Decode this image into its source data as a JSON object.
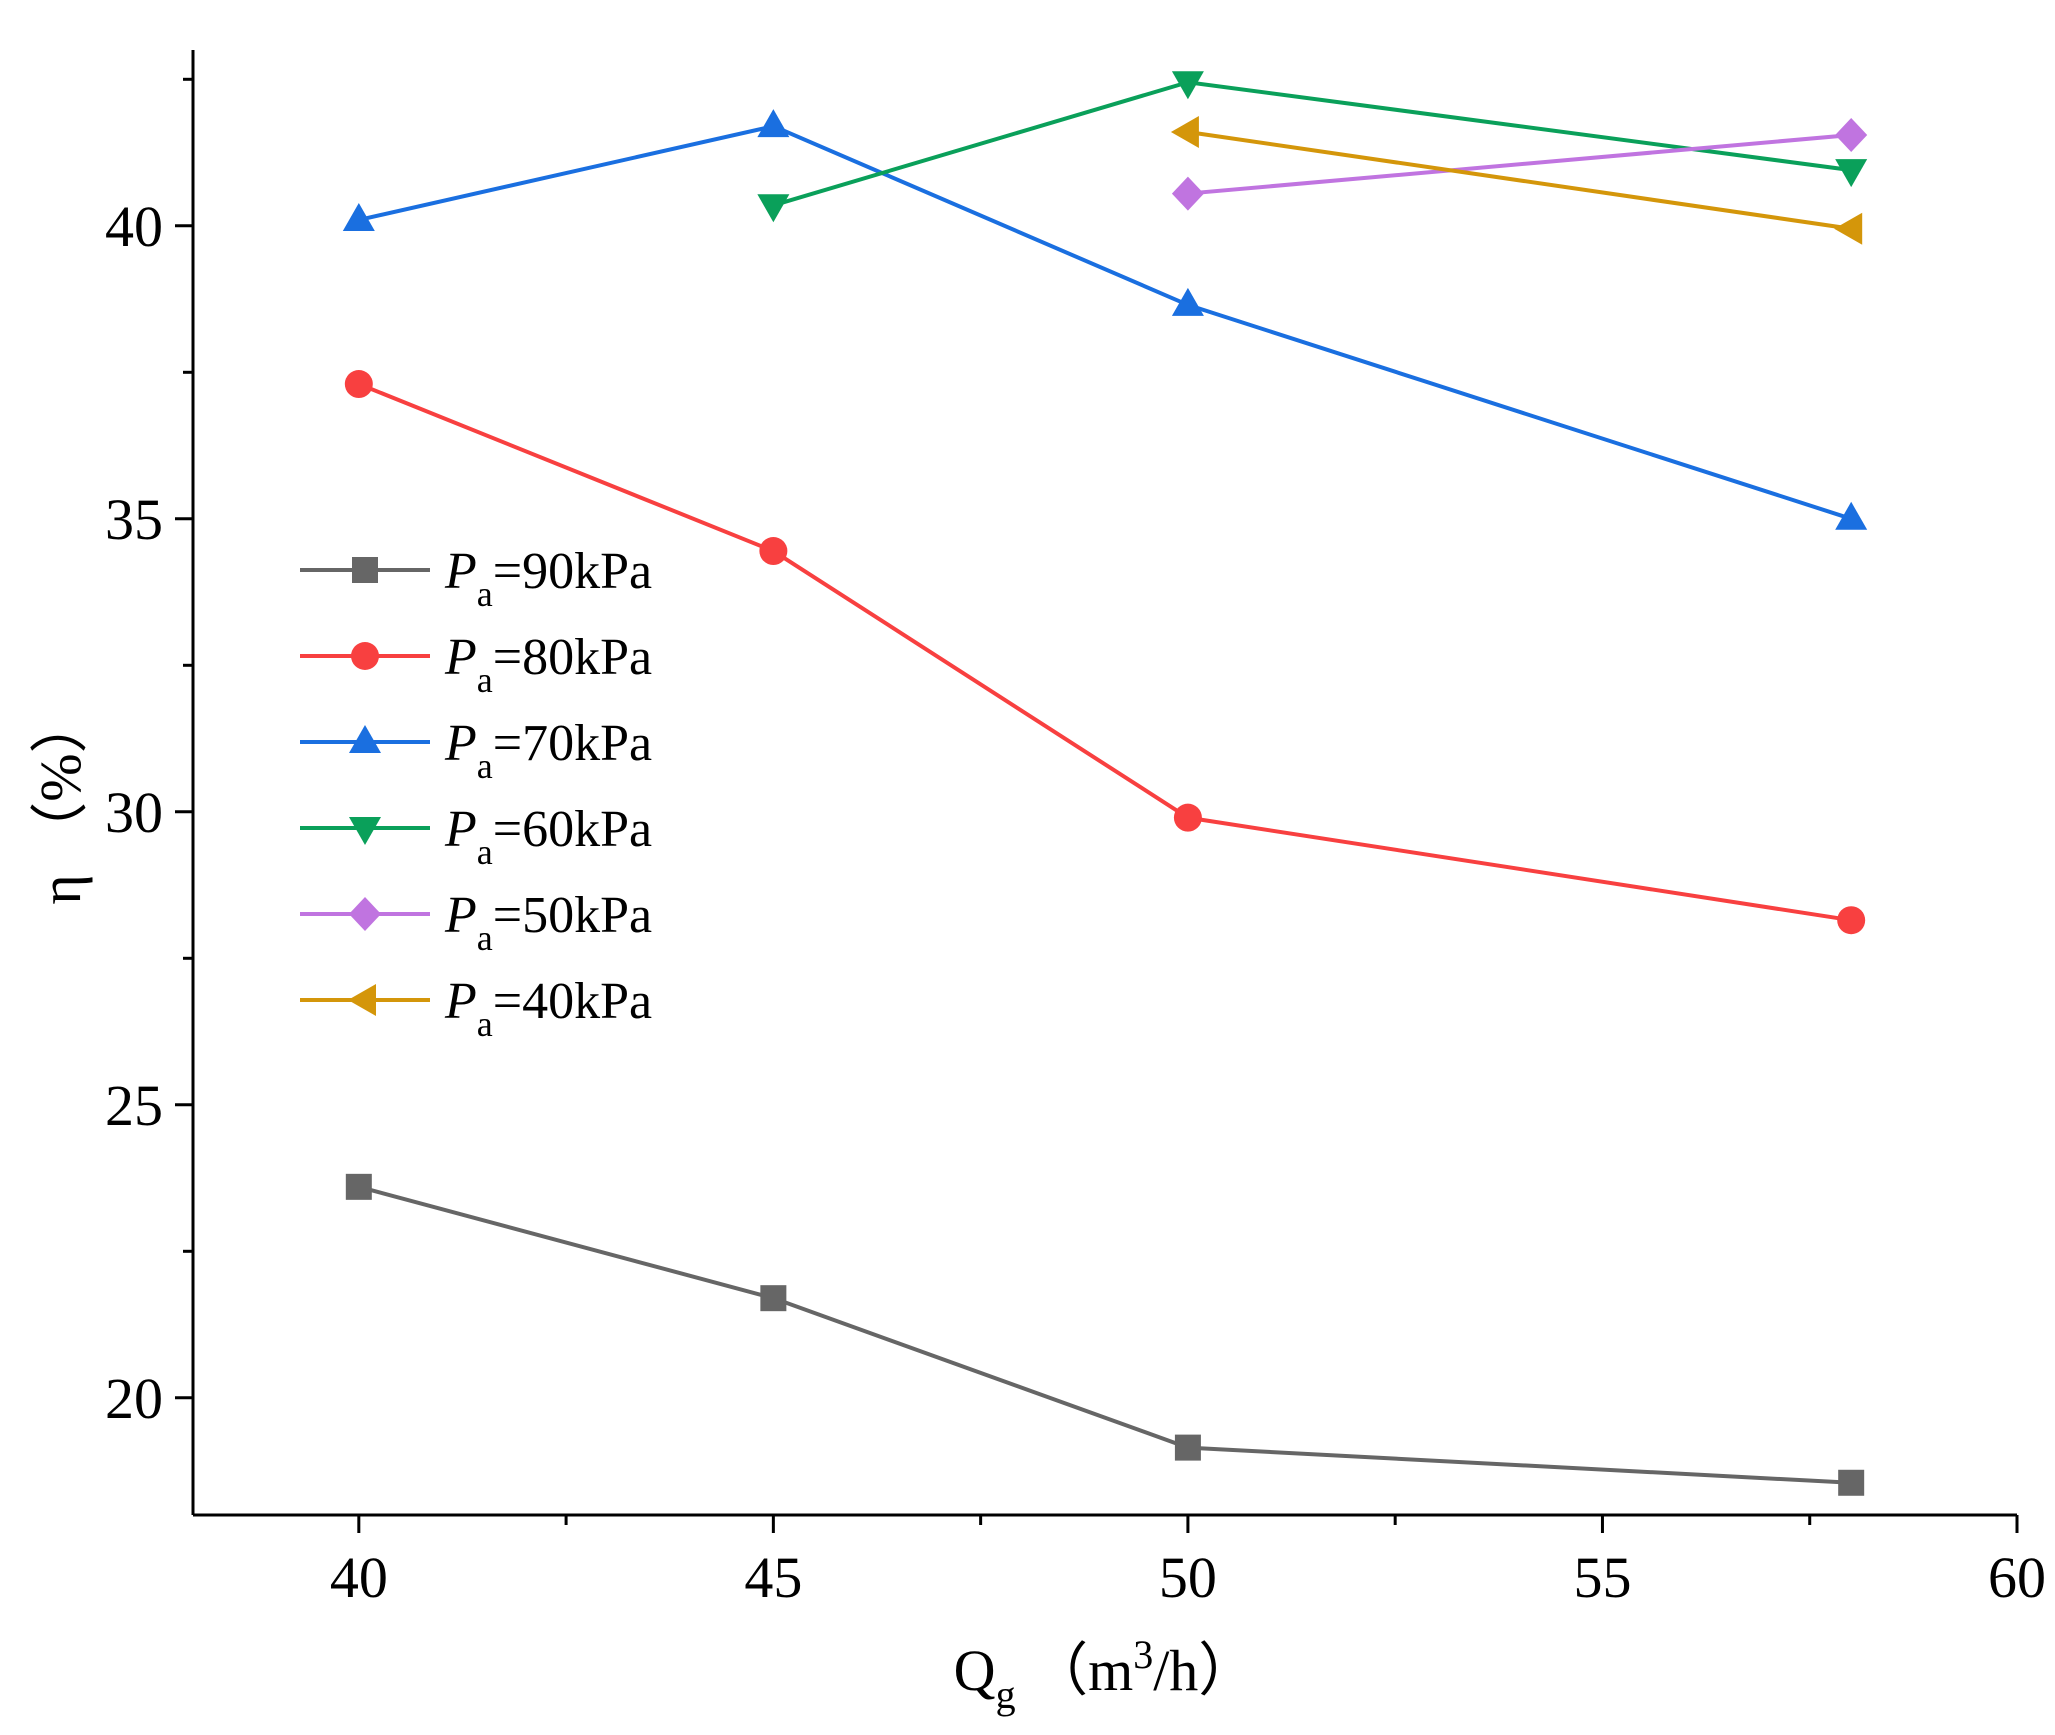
{
  "chart_data": {
    "type": "line",
    "title": "",
    "x_axis": {
      "label_main": "Q",
      "label_sub": "g",
      "label_unit_before_sup": "（m",
      "label_unit_sup": "3",
      "label_unit_after_sup": "/h）",
      "range": [
        38,
        60
      ],
      "ticks": [
        40,
        45,
        50,
        55,
        60
      ],
      "minor_ticks": [
        42.5,
        47.5,
        52.5,
        57.5
      ]
    },
    "y_axis": {
      "label": "η （%）",
      "range": [
        18,
        43
      ],
      "ticks": [
        20,
        25,
        30,
        35,
        40
      ],
      "minor_ticks": [
        22.5,
        27.5,
        32.5,
        37.5,
        42.5
      ]
    },
    "legend_position": "center-left",
    "series": [
      {
        "name": "=90kPa",
        "label_main": "P",
        "label_sub": "a",
        "color": "#666666",
        "marker": "square",
        "points": [
          [
            40,
            23.6
          ],
          [
            45,
            21.7
          ],
          [
            50,
            19.15
          ],
          [
            58,
            18.55
          ]
        ]
      },
      {
        "name": "=80kPa",
        "label_main": "P",
        "label_sub": "a",
        "color": "#f84040",
        "marker": "circle",
        "points": [
          [
            40,
            37.3
          ],
          [
            45,
            34.45
          ],
          [
            50,
            29.9
          ],
          [
            58,
            28.15
          ]
        ]
      },
      {
        "name": "=70kPa",
        "label_main": "P",
        "label_sub": "a",
        "color": "#1a6fe0",
        "marker": "triangle-up",
        "points": [
          [
            40,
            40.1
          ],
          [
            45,
            41.7
          ],
          [
            50,
            38.65
          ],
          [
            58,
            35.0
          ]
        ]
      },
      {
        "name": "=60kPa",
        "label_main": "P",
        "label_sub": "a",
        "color": "#0aa05a",
        "marker": "triangle-down",
        "points": [
          [
            45,
            40.35
          ],
          [
            50,
            42.45
          ],
          [
            58,
            40.95
          ]
        ]
      },
      {
        "name": "=50kPa",
        "label_main": "P",
        "label_sub": "a",
        "color": "#c074e0",
        "marker": "diamond",
        "points": [
          [
            50,
            40.55
          ],
          [
            58,
            41.55
          ]
        ]
      },
      {
        "name": "=40kPa",
        "label_main": "P",
        "label_sub": "a",
        "color": "#d4960a",
        "marker": "triangle-left",
        "points": [
          [
            50,
            41.6
          ],
          [
            58,
            39.95
          ]
        ]
      }
    ]
  }
}
